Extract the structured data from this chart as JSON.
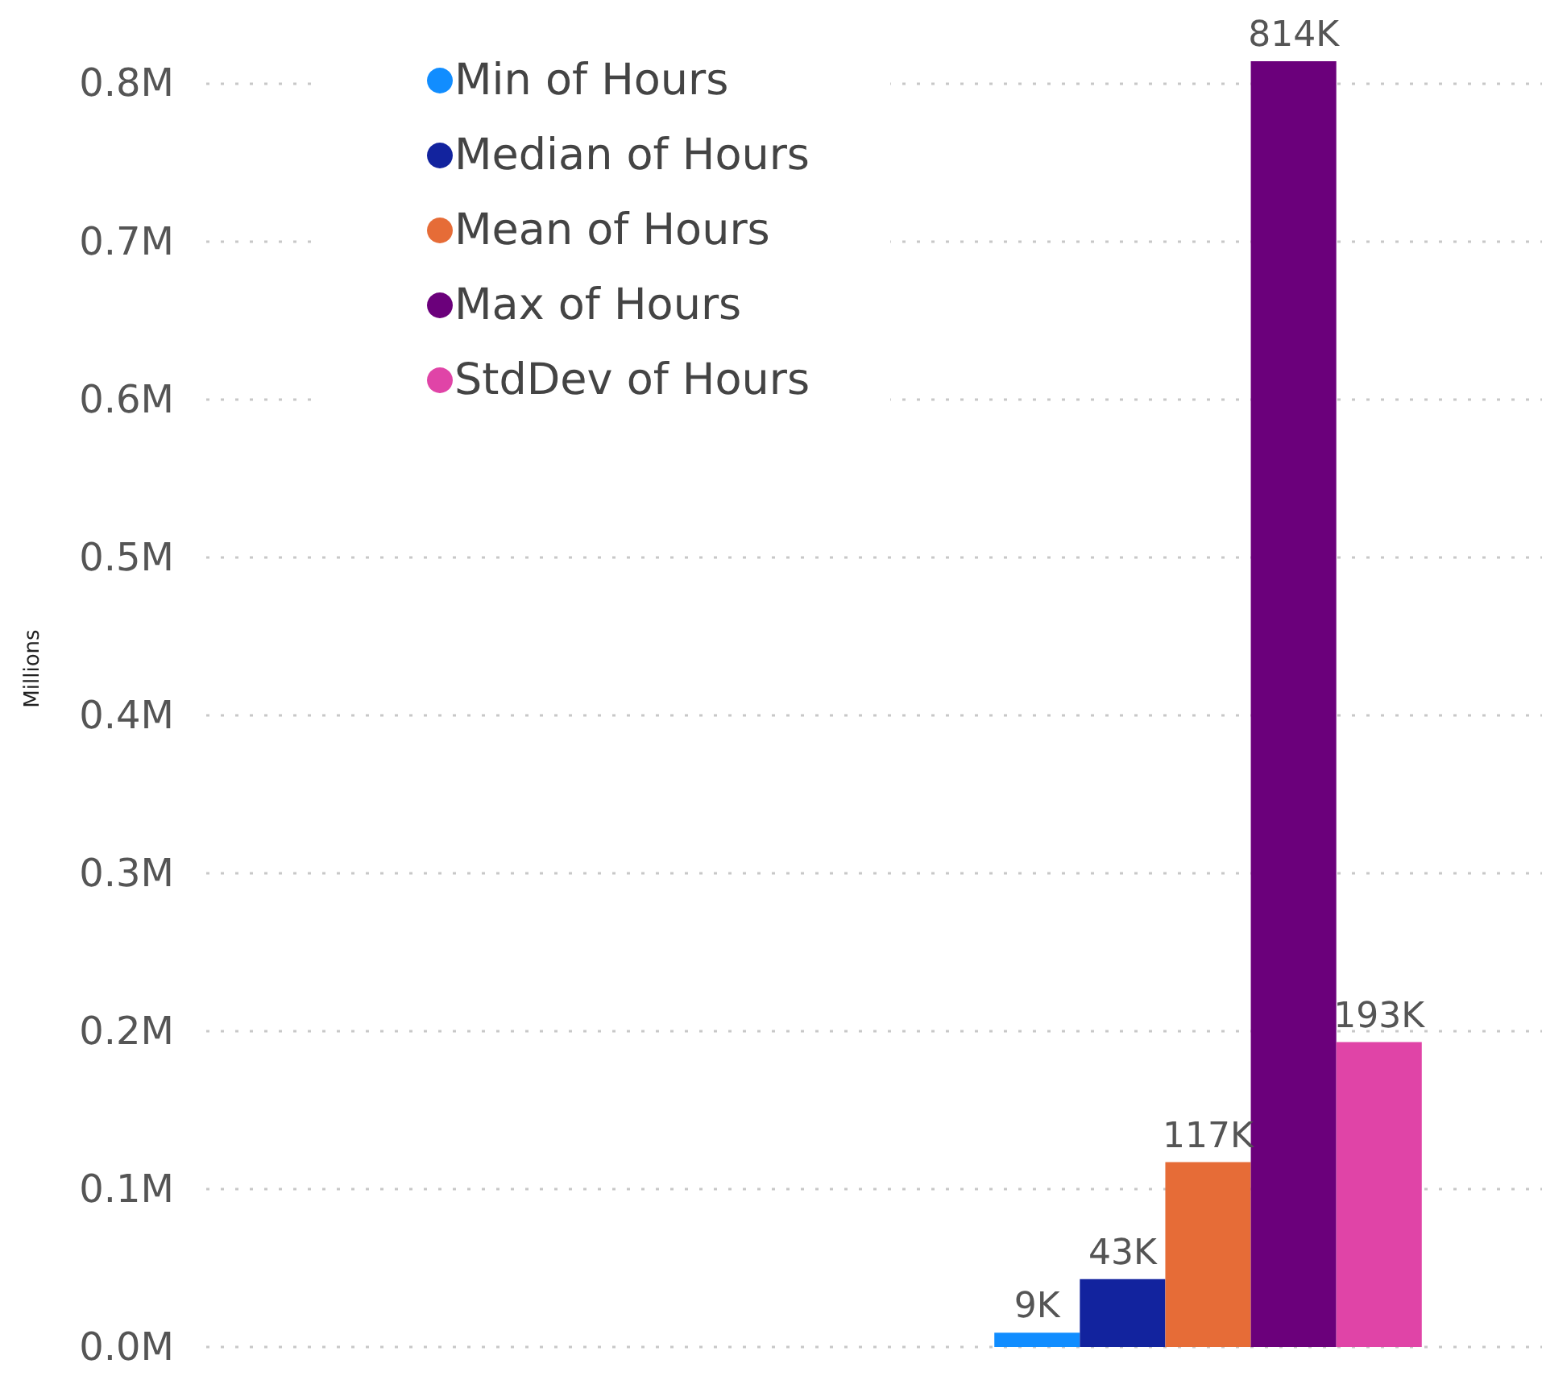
{
  "chart_data": {
    "type": "bar",
    "ylabel": "Millions",
    "categories": [
      null,
      null
    ],
    "series": [
      {
        "name": "Min of Hours",
        "color": "#118dff",
        "values": [
          null,
          9000
        ],
        "value_labels": [
          null,
          "9K"
        ]
      },
      {
        "name": "Median of Hours",
        "color": "#12239e",
        "values": [
          null,
          43000
        ],
        "value_labels": [
          null,
          "43K"
        ]
      },
      {
        "name": "Mean of Hours",
        "color": "#e66c37",
        "values": [
          null,
          117000
        ],
        "value_labels": [
          null,
          "117K"
        ]
      },
      {
        "name": "Max of Hours",
        "color": "#6b007b",
        "values": [
          null,
          814000
        ],
        "value_labels": [
          null,
          "814K"
        ]
      },
      {
        "name": "StdDev of Hours",
        "color": "#e044a7",
        "values": [
          null,
          193000
        ],
        "value_labels": [
          null,
          "193K"
        ]
      }
    ],
    "ylim": [
      0,
      814000
    ],
    "yticks": [
      {
        "value": 0,
        "label": "0.0M"
      },
      {
        "value": 100000,
        "label": "0.1M"
      },
      {
        "value": 200000,
        "label": "0.2M"
      },
      {
        "value": 300000,
        "label": "0.3M"
      },
      {
        "value": 400000,
        "label": "0.4M"
      },
      {
        "value": 500000,
        "label": "0.5M"
      },
      {
        "value": 600000,
        "label": "0.6M"
      },
      {
        "value": 700000,
        "label": "0.7M"
      },
      {
        "value": 800000,
        "label": "0.8M"
      }
    ],
    "grid": "y",
    "legend": "top left",
    "tick_labels": "y"
  }
}
